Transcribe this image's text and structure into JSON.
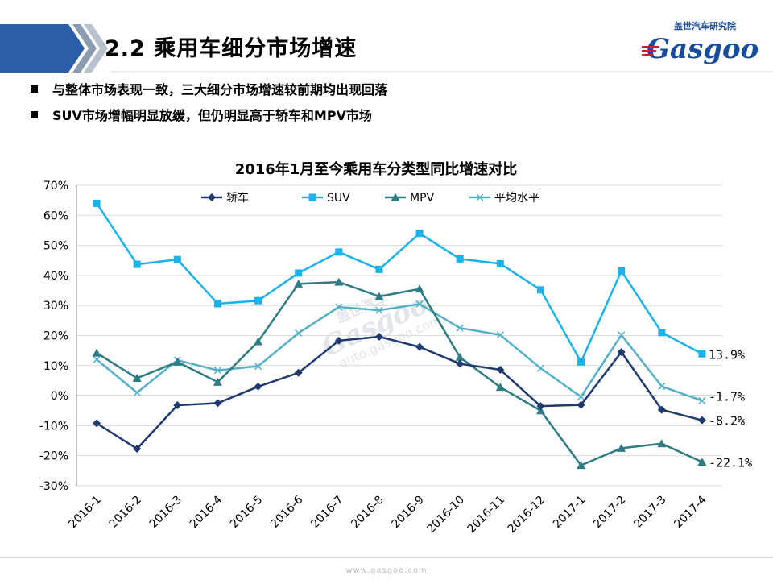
{
  "header": {
    "title": "2.2   乘用车细分市场增速",
    "logo_cn": "盖世汽车研究院",
    "logo_en": "Gasgoo"
  },
  "bullets": [
    "与整体市场表现一致，三大细分市场增速较前期均出现回落",
    "SUV市场增幅明显放缓，但仍明显高于轿车和MPV市场"
  ],
  "watermark": {
    "cn": "盖世汽车",
    "en": "Gasgoo",
    "url": "auto.gasgoo.com"
  },
  "footer": {
    "url": "www.gasgoo.com"
  },
  "colors": {
    "sedan": "#1f3a6e",
    "suv": "#1ab2ea",
    "mpv": "#2e7b84",
    "avg": "#53b0c7",
    "grid": "#d9d9d9",
    "header_band": "#2b5ea8"
  },
  "chart_data": {
    "type": "line",
    "title": "2016年1月至今乘用车分类型同比增速对比",
    "categories": [
      "2016-1",
      "2016-2",
      "2016-3",
      "2016-4",
      "2016-5",
      "2016-6",
      "2016-7",
      "2016-8",
      "2016-9",
      "2016-10",
      "2016-11",
      "2016-12",
      "2017-1",
      "2017-2",
      "2017-3",
      "2017-4"
    ],
    "ylim": [
      -30,
      70
    ],
    "yticks": [
      -30,
      -20,
      -10,
      0,
      10,
      20,
      30,
      40,
      50,
      60,
      70
    ],
    "ytick_labels": [
      "-30%",
      "-20%",
      "-10%",
      "0%",
      "10%",
      "20%",
      "30%",
      "40%",
      "50%",
      "60%",
      "70%"
    ],
    "grid": "horizontal",
    "legend_position": "top",
    "series": [
      {
        "name": "轿车",
        "marker": "diamond",
        "values": [
          -9.2,
          -17.7,
          -3.2,
          -2.5,
          3.0,
          7.6,
          18.3,
          19.6,
          16.2,
          10.6,
          8.6,
          -3.5,
          -3.1,
          14.5,
          -4.7,
          -8.2
        ],
        "end_label": "-8.2%"
      },
      {
        "name": "SUV",
        "marker": "square",
        "values": [
          64.0,
          43.7,
          45.3,
          30.6,
          31.6,
          40.8,
          47.8,
          42.0,
          54.0,
          45.5,
          43.9,
          35.2,
          11.2,
          41.5,
          21.0,
          13.9
        ],
        "end_label": "13.9%"
      },
      {
        "name": "MPV",
        "marker": "triangle",
        "values": [
          14.2,
          5.8,
          11.2,
          4.5,
          18.0,
          37.2,
          37.8,
          33.0,
          35.5,
          12.8,
          2.8,
          -5.0,
          -23.2,
          -17.5,
          -16.0,
          -22.1
        ],
        "end_label": "-22.1%"
      },
      {
        "name": "平均水平",
        "marker": "x",
        "values": [
          12.0,
          1.0,
          11.8,
          8.4,
          9.8,
          20.8,
          29.5,
          28.4,
          30.5,
          22.5,
          20.2,
          9.1,
          -0.4,
          20.2,
          3.1,
          -1.7
        ],
        "end_label": "-1.7%"
      }
    ]
  }
}
